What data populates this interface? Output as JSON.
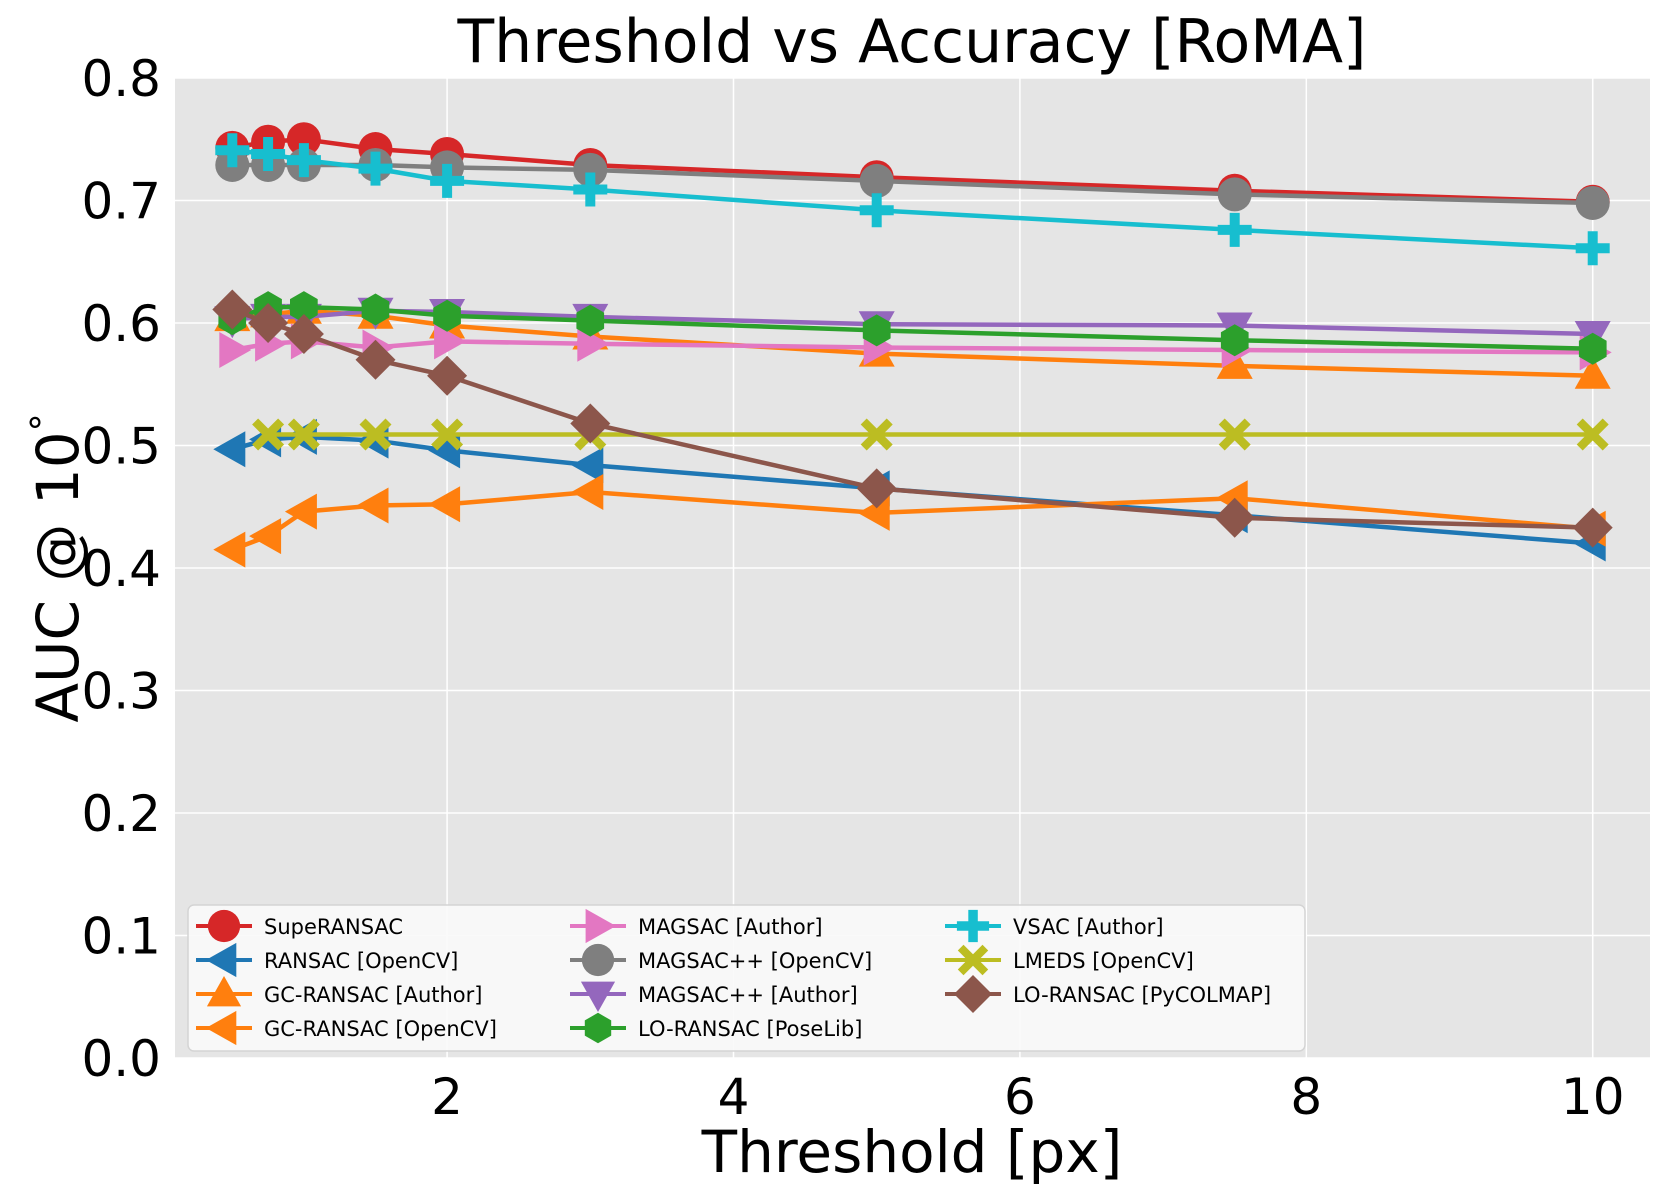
{
  "chart_data": {
    "type": "line",
    "title": "Threshold vs Accuracy [RoMA]",
    "xlabel": "Threshold [px]",
    "ylabel": "AUC @ 10",
    "ylabel_superscript": "°",
    "xlim": [
      0.1,
      10.4
    ],
    "ylim": [
      0.0,
      0.8
    ],
    "xticks": [
      2,
      4,
      6,
      8,
      10
    ],
    "xtick_labels": [
      "2",
      "4",
      "6",
      "8",
      "10"
    ],
    "yticks": [
      0.0,
      0.1,
      0.2,
      0.3,
      0.4,
      0.5,
      0.6,
      0.7,
      0.8
    ],
    "ytick_labels": [
      "0.0",
      "0.1",
      "0.2",
      "0.3",
      "0.4",
      "0.5",
      "0.6",
      "0.7",
      "0.8"
    ],
    "grid": true,
    "legend_position": "lower-left",
    "x": [
      0.5,
      0.75,
      1.0,
      1.5,
      2.0,
      3.0,
      5.0,
      7.5,
      10.0
    ],
    "series": [
      {
        "name": "SupeRANSAC",
        "color": "#d62728",
        "marker": "circle",
        "values": [
          0.743,
          0.748,
          0.75,
          0.742,
          0.738,
          0.729,
          0.719,
          0.708,
          0.699
        ]
      },
      {
        "name": "RANSAC [OpenCV]",
        "color": "#1f77b4",
        "marker": "triangle-left",
        "values": [
          0.497,
          0.505,
          0.507,
          0.504,
          0.496,
          0.484,
          0.465,
          0.443,
          0.42
        ]
      },
      {
        "name": "GC-RANSAC [Author]",
        "color": "#ff7f0e",
        "marker": "triangle-up",
        "values": [
          0.604,
          0.607,
          0.61,
          0.606,
          0.598,
          0.589,
          0.575,
          0.565,
          0.557
        ]
      },
      {
        "name": "GC-RANSAC [OpenCV]",
        "color": "#ff7f0e",
        "marker": "triangle-left",
        "values": [
          0.415,
          0.426,
          0.446,
          0.451,
          0.452,
          0.462,
          0.445,
          0.457,
          0.432
        ]
      },
      {
        "name": "MAGSAC [Author]",
        "color": "#e377c2",
        "marker": "triangle-right",
        "values": [
          0.578,
          0.583,
          0.585,
          0.58,
          0.585,
          0.583,
          0.58,
          0.578,
          0.576
        ]
      },
      {
        "name": "MAGSAC++ [OpenCV]",
        "color": "#7f7f7f",
        "marker": "circle",
        "values": [
          0.729,
          0.729,
          0.729,
          0.729,
          0.727,
          0.725,
          0.716,
          0.705,
          0.698
        ]
      },
      {
        "name": "MAGSAC++ [Author]",
        "color": "#9467bd",
        "marker": "triangle-down",
        "values": [
          0.603,
          0.605,
          0.605,
          0.61,
          0.609,
          0.605,
          0.599,
          0.598,
          0.591
        ]
      },
      {
        "name": "LO-RANSAC [PoseLib]",
        "color": "#2ca02c",
        "marker": "hexagon",
        "values": [
          0.603,
          0.613,
          0.613,
          0.611,
          0.606,
          0.602,
          0.594,
          0.586,
          0.579
        ]
      },
      {
        "name": "VSAC [Author]",
        "color": "#17becf",
        "marker": "plus",
        "values": [
          0.741,
          0.738,
          0.733,
          0.726,
          0.716,
          0.709,
          0.692,
          0.676,
          0.661
        ]
      },
      {
        "name": "LMEDS [OpenCV]",
        "color": "#bcbd22",
        "marker": "x",
        "values": [
          null,
          0.509,
          0.509,
          0.509,
          0.509,
          0.509,
          0.509,
          0.509,
          0.509
        ]
      },
      {
        "name": "LO-RANSAC [PyCOLMAP]",
        "color": "#8c564b",
        "marker": "diamond",
        "values": [
          0.611,
          0.6,
          0.591,
          0.57,
          0.557,
          0.518,
          0.465,
          0.441,
          0.433
        ]
      }
    ]
  }
}
